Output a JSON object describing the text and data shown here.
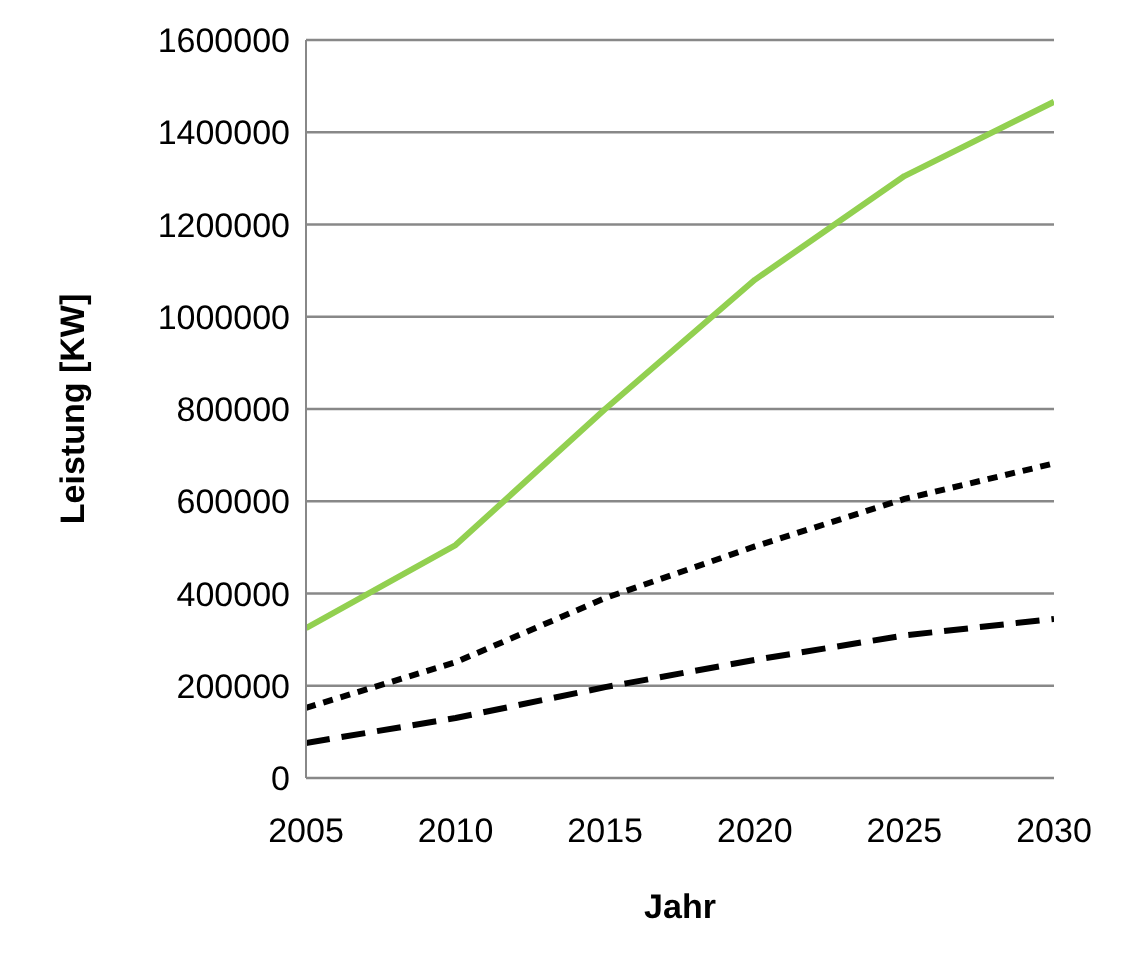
{
  "chart_data": {
    "type": "line",
    "xlabel": "Jahr",
    "ylabel": "Leistung [KW]",
    "x": [
      2005,
      2010,
      2015,
      2020,
      2025,
      2030
    ],
    "series": [
      {
        "color": "#92d050",
        "line_style": "solid",
        "values": [
          325000,
          505000,
          800000,
          1080000,
          1305000,
          1466000
        ]
      },
      {
        "color": "#000000",
        "line_style": "dotted",
        "values": [
          152000,
          251000,
          390000,
          502000,
          605000,
          682000
        ]
      },
      {
        "color": "#000000",
        "line_style": "dashed",
        "values": [
          76000,
          130000,
          197000,
          256000,
          309000,
          345000
        ]
      }
    ],
    "xlim": [
      2005,
      2030
    ],
    "xticks": [
      2005,
      2010,
      2015,
      2020,
      2025,
      2030
    ],
    "ylim": [
      0,
      1600000
    ],
    "yticks": [
      0,
      200000,
      400000,
      600000,
      800000,
      1000000,
      1200000,
      1400000,
      1600000
    ],
    "grid": "y",
    "marker": "none"
  }
}
